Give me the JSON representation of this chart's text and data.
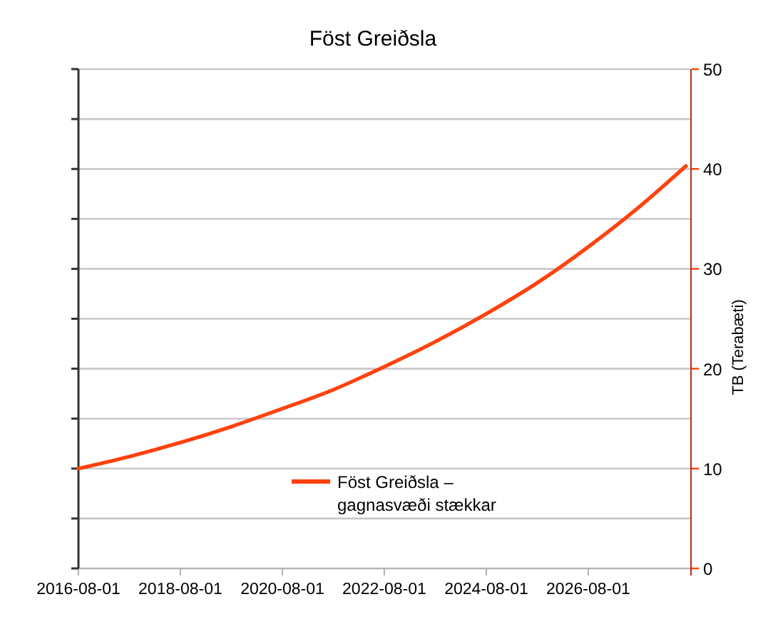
{
  "chart_data": {
    "type": "line",
    "title": "Föst Greiðsla",
    "y2label": "TB (Terabæti)",
    "x": [
      "2016-08-01",
      "2017-08-01",
      "2018-08-01",
      "2019-08-01",
      "2020-08-01",
      "2021-08-01",
      "2022-08-01",
      "2023-08-01",
      "2024-08-01",
      "2025-08-01",
      "2026-08-01",
      "2027-08-01",
      "2028-07-01"
    ],
    "series": [
      {
        "name": "Föst Greiðsla – gagnasvæði stækkar",
        "color": "#ff420e",
        "axis": "y2",
        "values": [
          10,
          11.2,
          12.6,
          14.2,
          16.0,
          17.9,
          20.2,
          22.7,
          25.5,
          28.6,
          32.2,
          36.2,
          40.3
        ]
      }
    ],
    "xlim": [
      "2016-08-01",
      "2028-08-01"
    ],
    "xticks": [
      "2016-08-01",
      "2018-08-01",
      "2020-08-01",
      "2022-08-01",
      "2024-08-01",
      "2026-08-01"
    ],
    "y2lim": [
      0,
      50
    ],
    "y2ticks": [
      0,
      {
        "value": 5,
        "label": null
      },
      10,
      {
        "value": 15,
        "label": null
      },
      20,
      {
        "value": 25,
        "label": null
      },
      30,
      {
        "value": 35,
        "label": null
      },
      40,
      {
        "value": 45,
        "label": null
      },
      50
    ],
    "grid": "y",
    "legend": "bottom",
    "marker": "none",
    "line_style": "solid"
  }
}
